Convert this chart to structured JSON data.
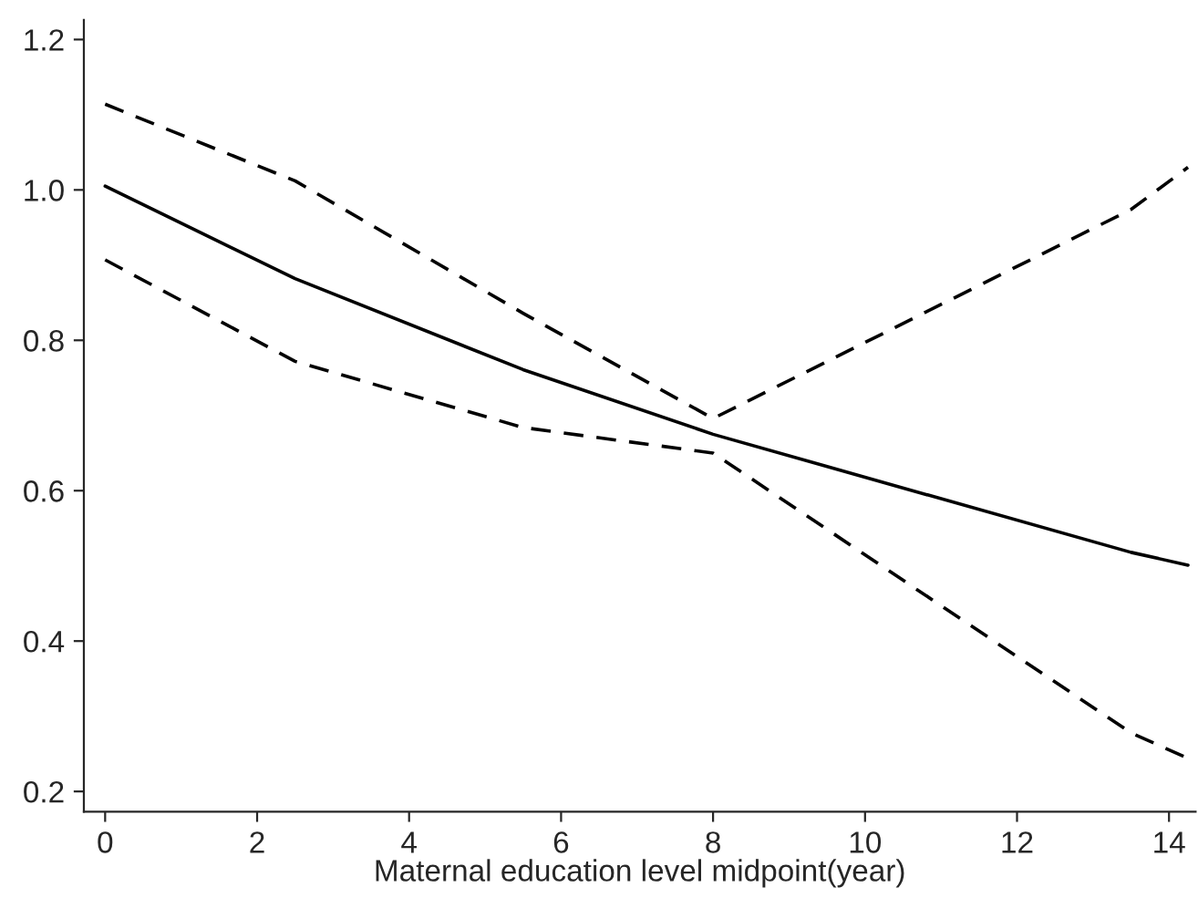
{
  "chart_data": {
    "type": "line",
    "xlabel": "Maternal education level midpoint(year)",
    "x": [
      0,
      2.5,
      5.5,
      8,
      13.5,
      14.25
    ],
    "series": [
      {
        "color": "#000000",
        "line_style": "dashed",
        "values": [
          1.114,
          1.012,
          0.836,
          0.696,
          0.974,
          1.03
        ]
      },
      {
        "color": "#000000",
        "line_style": "solid",
        "values": [
          1.005,
          0.882,
          0.761,
          0.675,
          0.518,
          0.501
        ]
      },
      {
        "color": "#000000",
        "line_style": "dashed",
        "values": [
          0.907,
          0.772,
          0.684,
          0.65,
          0.278,
          0.244
        ]
      }
    ],
    "xlim": [
      -0.28,
      14.35
    ],
    "ylim": [
      0.173,
      1.226
    ],
    "xticks": [
      0,
      2,
      4,
      6,
      8,
      10,
      12,
      14
    ],
    "yticks": [
      0.2,
      0.4,
      0.6,
      0.8,
      {
        "value": 1,
        "label": "1.0"
      },
      {
        "value": 1.2,
        "label": "1.2"
      }
    ],
    "grid": false,
    "legend": false,
    "marker": "none"
  }
}
